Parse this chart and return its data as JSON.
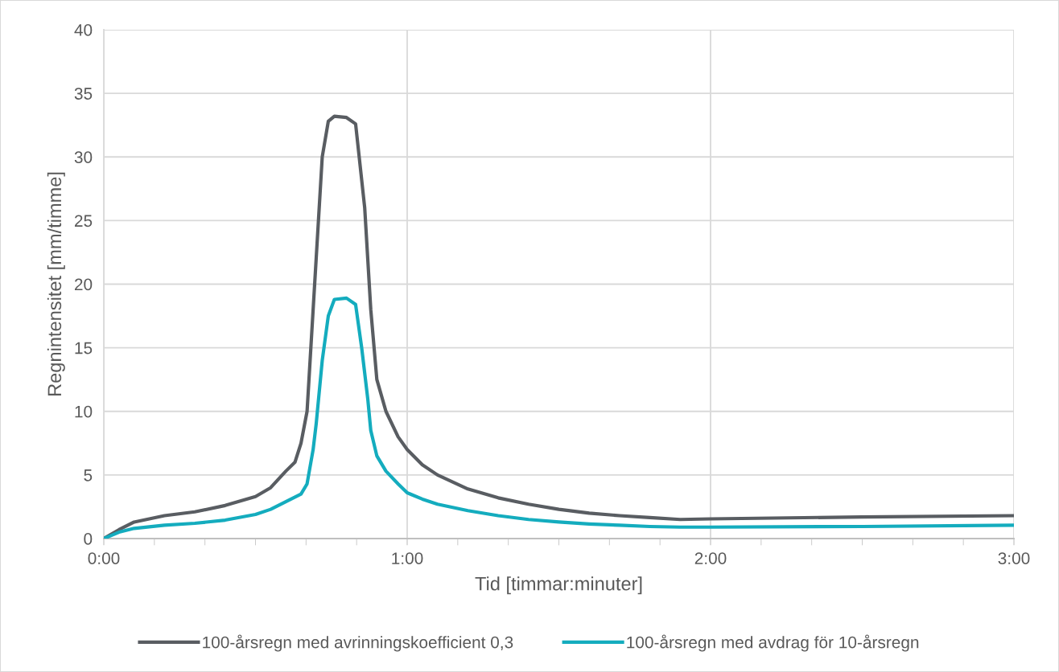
{
  "chart_data": {
    "type": "line",
    "xlabel": "Tid [timmar:minuter]",
    "ylabel": "Regnintensitet [mm/timme]",
    "xlim": [
      0,
      3
    ],
    "xticks": [
      {
        "value": 0,
        "label": "0:00"
      },
      {
        "value": 1,
        "label": "1:00"
      },
      {
        "value": 2,
        "label": "2:00"
      },
      {
        "value": 3,
        "label": "3:00"
      }
    ],
    "ylim": [
      0,
      40
    ],
    "yticks": [
      0,
      5,
      10,
      15,
      20,
      25,
      30,
      35,
      40
    ],
    "grid": true,
    "legend": "bottom",
    "marker": "none",
    "line_style": "solid",
    "series": [
      {
        "name": "100-årsregn med avrinningskoefficient 0,3",
        "color": "#595d62",
        "x": [
          0,
          0.05,
          0.1,
          0.2,
          0.3,
          0.4,
          0.5,
          0.55,
          0.6,
          0.63,
          0.65,
          0.67,
          0.68,
          0.7,
          0.72,
          0.74,
          0.76,
          0.8,
          0.83,
          0.86,
          0.88,
          0.9,
          0.93,
          0.97,
          1.0,
          1.05,
          1.1,
          1.2,
          1.3,
          1.4,
          1.5,
          1.6,
          1.7,
          1.8,
          1.9,
          2.0,
          2.5,
          3.0
        ],
        "values": [
          0,
          0.7,
          1.3,
          1.8,
          2.1,
          2.6,
          3.3,
          4.0,
          5.3,
          6.0,
          7.5,
          10,
          14,
          22,
          30,
          32.8,
          33.2,
          33.1,
          32.6,
          26,
          18,
          12.5,
          10,
          8,
          7,
          5.8,
          5.0,
          3.9,
          3.2,
          2.7,
          2.3,
          2.0,
          1.8,
          1.65,
          1.5,
          1.55,
          1.7,
          1.8
        ]
      },
      {
        "name": "100-årsregn med avdrag för 10-årsregn",
        "color": "#14acbe",
        "x": [
          0,
          0.05,
          0.1,
          0.2,
          0.3,
          0.4,
          0.5,
          0.55,
          0.6,
          0.65,
          0.67,
          0.69,
          0.7,
          0.72,
          0.74,
          0.76,
          0.8,
          0.83,
          0.85,
          0.87,
          0.88,
          0.9,
          0.93,
          0.97,
          1.0,
          1.05,
          1.1,
          1.2,
          1.3,
          1.4,
          1.5,
          1.6,
          1.7,
          1.8,
          1.9,
          2.0,
          2.5,
          3.0
        ],
        "values": [
          0,
          0.5,
          0.8,
          1.05,
          1.2,
          1.45,
          1.9,
          2.3,
          2.9,
          3.5,
          4.3,
          7,
          9,
          14,
          17.5,
          18.8,
          18.9,
          18.4,
          15,
          11,
          8.5,
          6.5,
          5.3,
          4.3,
          3.6,
          3.1,
          2.7,
          2.2,
          1.8,
          1.5,
          1.3,
          1.15,
          1.05,
          0.95,
          0.9,
          0.9,
          0.95,
          1.05
        ]
      }
    ]
  }
}
